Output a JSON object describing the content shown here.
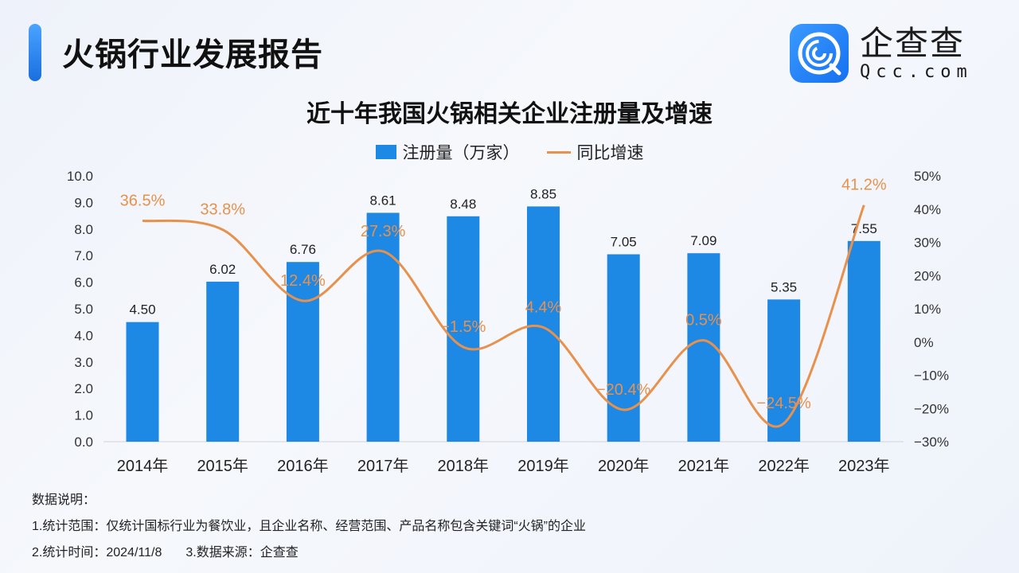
{
  "header": {
    "title": "火锅行业发展报告"
  },
  "logo": {
    "cn": "企查查",
    "en": "Qcc.com"
  },
  "chart_data": {
    "type": "bar+line",
    "title": "近十年我国火锅相关企业注册量及增速",
    "categories": [
      "2014年",
      "2015年",
      "2016年",
      "2017年",
      "2018年",
      "2019年",
      "2020年",
      "2021年",
      "2022年",
      "2023年"
    ],
    "series": [
      {
        "name": "注册量（万家）",
        "type": "bar",
        "axis": "left",
        "color": "#1e88e5",
        "values": [
          4.5,
          6.02,
          6.76,
          8.61,
          8.48,
          8.85,
          7.05,
          7.09,
          5.35,
          7.55
        ],
        "labels": [
          "4.50",
          "6.02",
          "6.76",
          "8.61",
          "8.48",
          "8.85",
          "7.05",
          "7.09",
          "5.35",
          "7.55"
        ]
      },
      {
        "name": "同比增速",
        "type": "line",
        "axis": "right",
        "color": "#e8914c",
        "values": [
          36.5,
          33.8,
          12.4,
          27.3,
          -1.5,
          4.4,
          -20.4,
          0.5,
          -24.5,
          41.2
        ],
        "labels": [
          "36.5%",
          "33.8%",
          "12.4%",
          "27.3%",
          "-1.5%",
          "4.4%",
          "-20.4%",
          "0.5%",
          "-24.5%",
          "41.2%"
        ]
      }
    ],
    "left_axis": {
      "range": [
        0,
        10
      ],
      "ticks": [
        "0.0",
        "1.0",
        "2.0",
        "3.0",
        "4.0",
        "5.0",
        "6.0",
        "7.0",
        "8.0",
        "9.0",
        "10.0"
      ]
    },
    "right_axis": {
      "range": [
        -30,
        50
      ],
      "ticks": [
        "-30%",
        "-20%",
        "-10%",
        "0%",
        "10%",
        "20%",
        "30%",
        "40%",
        "50%"
      ]
    },
    "grid": false,
    "legend": "top-center"
  },
  "notes": {
    "heading": "数据说明：",
    "line1": "1.统计范围：仅统计国标行业为餐饮业，且企业名称、经营范围、产品名称包含关键词“火锅”的企业",
    "line2a": "2.统计时间：2024/11/8",
    "line2b": "3.数据来源：企查查"
  }
}
